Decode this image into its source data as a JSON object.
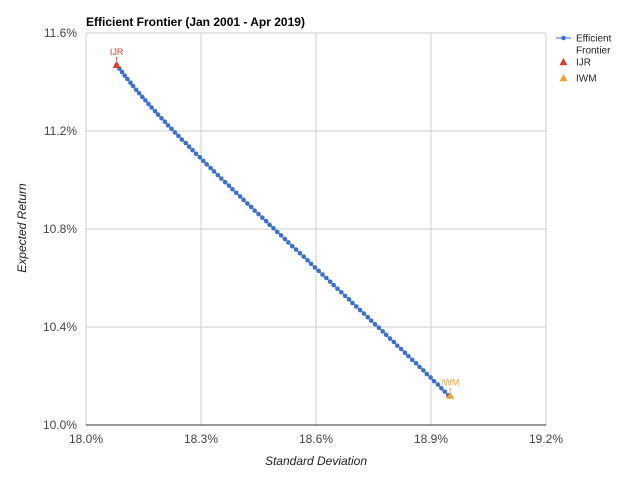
{
  "chart_data": {
    "type": "scatter",
    "title": "Efficient Frontier (Jan 2001 - Apr 2019)",
    "xlabel": "Standard Deviation",
    "ylabel": "Expected Return",
    "xlim": [
      18.0,
      19.2
    ],
    "ylim": [
      10.0,
      11.6
    ],
    "x_ticks": [
      "18.0%",
      "18.3%",
      "18.6%",
      "18.9%",
      "19.2%"
    ],
    "y_ticks": [
      "10.0%",
      "10.4%",
      "10.8%",
      "11.2%",
      "11.6%"
    ],
    "grid": true,
    "legend_position": "right",
    "series": [
      {
        "name": "Efficient Frontier",
        "kind": "line-markers",
        "color": "#3d6fd1",
        "x": [
          18.08,
          18.087,
          18.094,
          18.101,
          18.108,
          18.116,
          18.123,
          18.131,
          18.139,
          18.147,
          18.155,
          18.163,
          18.171,
          18.18,
          18.188,
          18.197,
          18.206,
          18.214,
          18.223,
          18.232,
          18.241,
          18.25,
          18.26,
          18.269,
          18.278,
          18.287,
          18.297,
          18.306,
          18.315,
          18.325,
          18.334,
          18.344,
          18.353,
          18.363,
          18.373,
          18.382,
          18.392,
          18.402,
          18.411,
          18.421,
          18.431,
          18.44,
          18.45,
          18.46,
          18.47,
          18.479,
          18.489,
          18.499,
          18.509,
          18.519,
          18.528,
          18.538,
          18.548,
          18.558,
          18.568,
          18.578,
          18.587,
          18.597,
          18.607,
          18.617,
          18.627,
          18.637,
          18.646,
          18.656,
          18.666,
          18.676,
          18.686,
          18.695,
          18.705,
          18.715,
          18.725,
          18.735,
          18.744,
          18.754,
          18.764,
          18.774,
          18.783,
          18.793,
          18.803,
          18.812,
          18.822,
          18.832,
          18.841,
          18.851,
          18.861,
          18.87,
          18.88,
          18.889,
          18.899,
          18.908,
          18.918,
          18.927,
          18.936,
          18.945
        ],
        "y": [
          11.47,
          11.455,
          11.441,
          11.426,
          11.412,
          11.397,
          11.383,
          11.368,
          11.354,
          11.339,
          11.325,
          11.31,
          11.296,
          11.281,
          11.267,
          11.252,
          11.238,
          11.223,
          11.209,
          11.194,
          11.18,
          11.165,
          11.151,
          11.136,
          11.122,
          11.107,
          11.093,
          11.078,
          11.064,
          11.049,
          11.035,
          11.02,
          11.006,
          10.991,
          10.977,
          10.962,
          10.948,
          10.933,
          10.919,
          10.904,
          10.89,
          10.875,
          10.861,
          10.846,
          10.832,
          10.817,
          10.803,
          10.788,
          10.774,
          10.759,
          10.745,
          10.73,
          10.716,
          10.701,
          10.687,
          10.672,
          10.658,
          10.643,
          10.629,
          10.614,
          10.6,
          10.585,
          10.571,
          10.556,
          10.542,
          10.527,
          10.513,
          10.498,
          10.484,
          10.469,
          10.455,
          10.44,
          10.426,
          10.411,
          10.397,
          10.382,
          10.368,
          10.353,
          10.339,
          10.324,
          10.31,
          10.295,
          10.281,
          10.266,
          10.252,
          10.237,
          10.223,
          10.208,
          10.194,
          10.179,
          10.165,
          10.15,
          10.136,
          10.121
        ]
      },
      {
        "name": "IJR",
        "kind": "triangle",
        "color": "#d6402e",
        "x": [
          18.08
        ],
        "y": [
          11.47
        ],
        "label": "IJR"
      },
      {
        "name": "IWM",
        "kind": "triangle",
        "color": "#f0a030",
        "x": [
          18.95
        ],
        "y": [
          10.12
        ],
        "label": "IWM"
      }
    ]
  }
}
